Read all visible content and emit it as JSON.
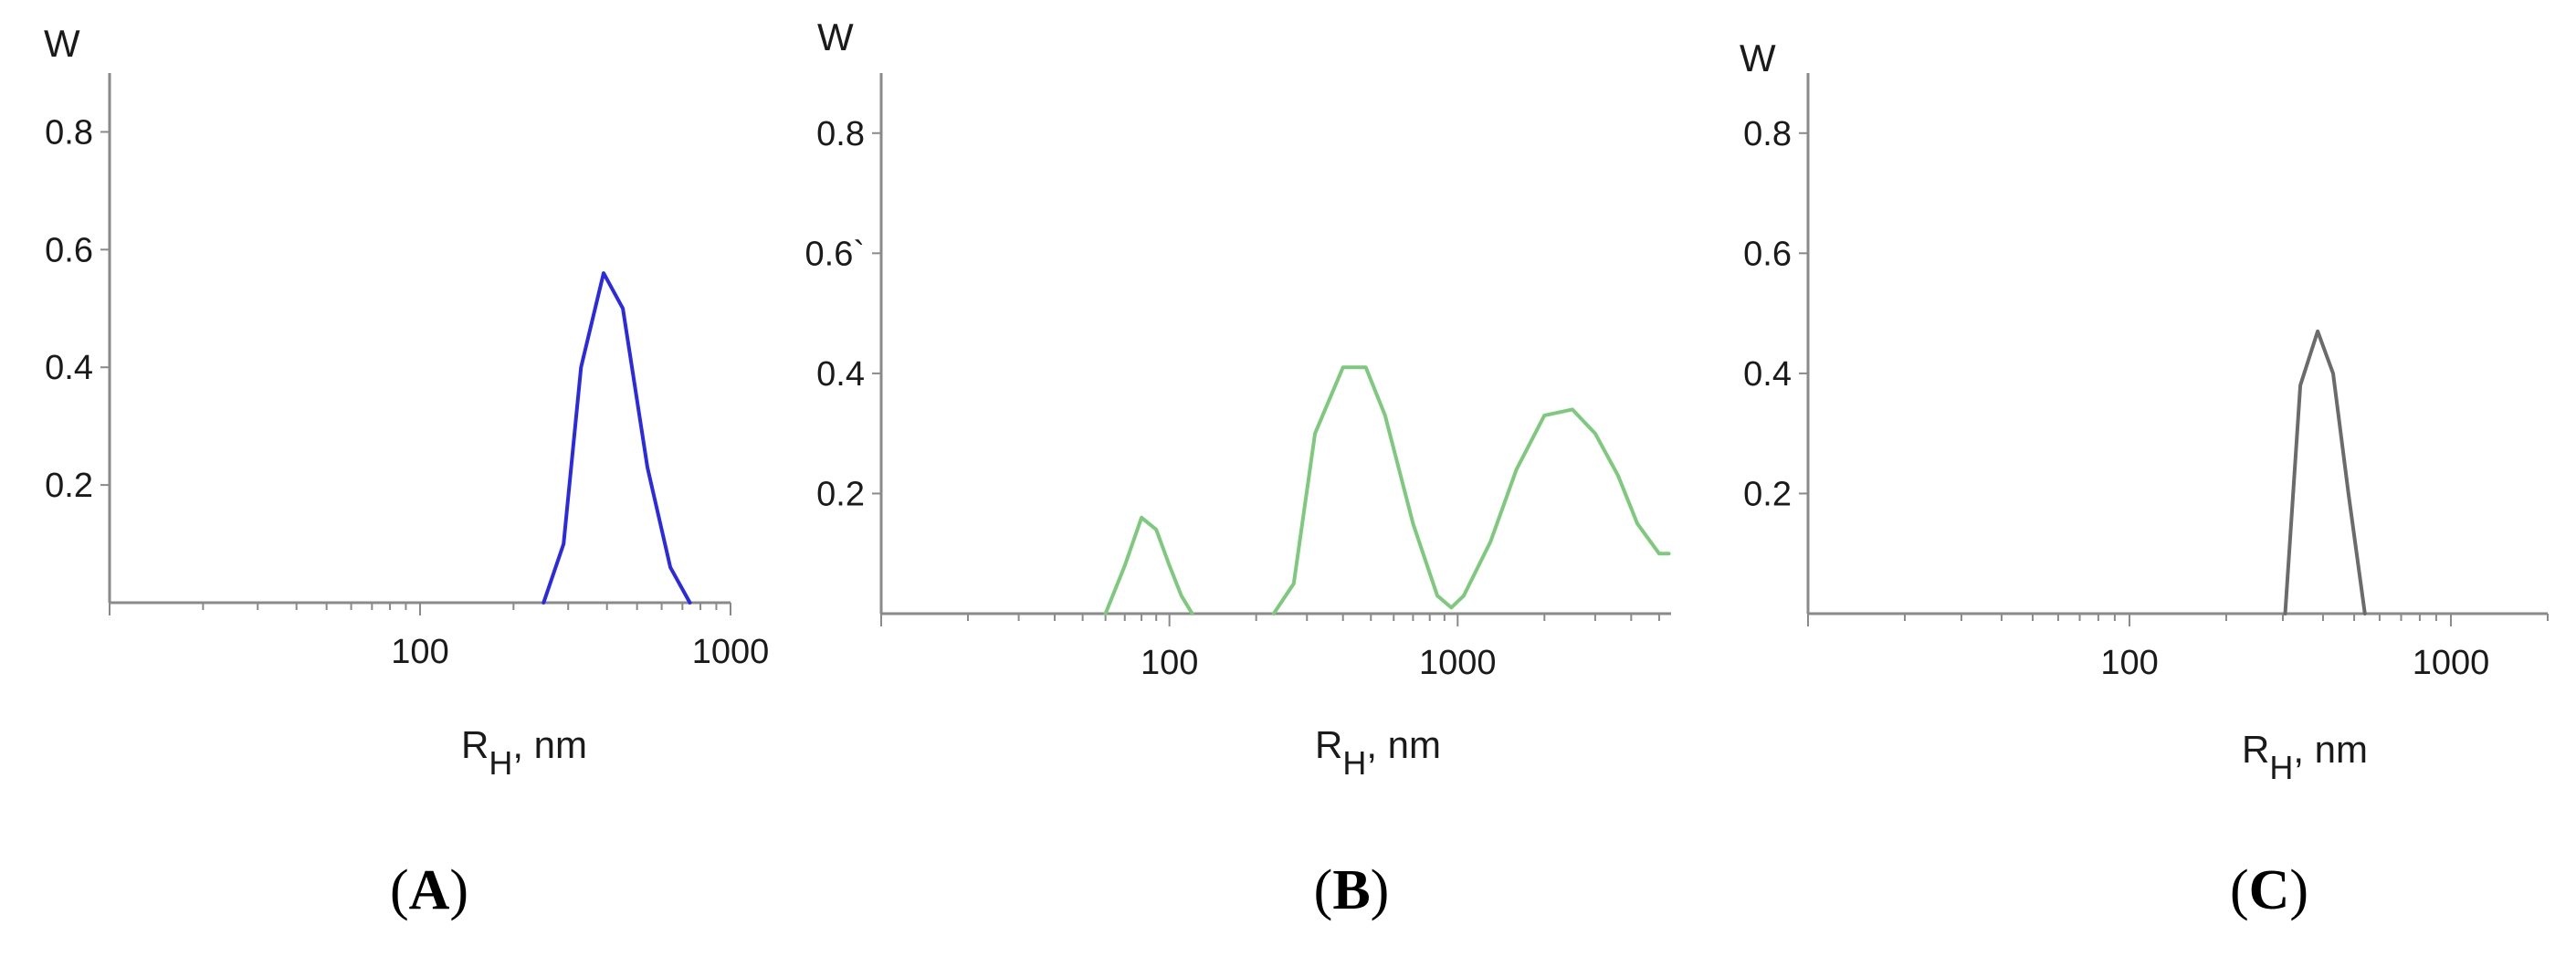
{
  "chart_data": [
    {
      "type": "line",
      "panel_label": "A",
      "ylabel": "W",
      "xlabel_main": "R",
      "xlabel_sub": "H",
      "xlabel_tail": ", nm",
      "x_scale": "log",
      "xlim": [
        10,
        1000
      ],
      "ylim": [
        0,
        0.9
      ],
      "y_ticks": [
        0.2,
        0.4,
        0.6,
        0.8
      ],
      "y_tick_labels": [
        "0.2",
        "0.4",
        "0.6",
        "0.8"
      ],
      "x_ticks": [
        100,
        1000
      ],
      "x_tick_labels": [
        "100",
        "1000"
      ],
      "grid": false,
      "series": [
        {
          "color": "#2a2ae6",
          "x": [
            250,
            290,
            330,
            390,
            450,
            540,
            640,
            740
          ],
          "y": [
            0.0,
            0.1,
            0.4,
            0.56,
            0.5,
            0.23,
            0.06,
            0.0
          ]
        }
      ]
    },
    {
      "type": "line",
      "panel_label": "B",
      "ylabel": "W",
      "xlabel_main": "R",
      "xlabel_sub": "H",
      "xlabel_tail": ", nm",
      "x_scale": "log",
      "xlim": [
        10,
        5500
      ],
      "ylim": [
        0,
        0.9
      ],
      "y_ticks": [
        0.2,
        0.4,
        0.6,
        0.8
      ],
      "y_tick_labels": [
        "0.2",
        "0.4",
        "0.6`",
        "0.8"
      ],
      "x_ticks": [
        100,
        1000
      ],
      "x_tick_labels": [
        "100",
        "1000"
      ],
      "grid": false,
      "series": [
        {
          "color": "#7dca7d",
          "x": [
            60,
            70,
            80,
            90,
            100,
            110,
            120
          ],
          "y": [
            0.0,
            0.08,
            0.16,
            0.14,
            0.08,
            0.03,
            0.0
          ]
        },
        {
          "color": "#7dca7d",
          "x": [
            230,
            270,
            320,
            400,
            480,
            560,
            700,
            850,
            950,
            1050
          ],
          "y": [
            0.0,
            0.05,
            0.3,
            0.41,
            0.41,
            0.33,
            0.15,
            0.03,
            0.01,
            0.03
          ]
        },
        {
          "color": "#7dca7d",
          "x": [
            1050,
            1300,
            1600,
            2000,
            2500,
            3000,
            3600,
            4200,
            5000,
            5400
          ],
          "y": [
            0.03,
            0.12,
            0.24,
            0.33,
            0.34,
            0.3,
            0.23,
            0.15,
            0.1,
            0.1
          ]
        }
      ]
    },
    {
      "type": "line",
      "panel_label": "C",
      "ylabel": "W",
      "xlabel_main": "R",
      "xlabel_sub": "H",
      "xlabel_tail": ", nm",
      "x_scale": "log",
      "xlim": [
        10,
        2000
      ],
      "ylim": [
        0,
        0.9
      ],
      "y_ticks": [
        0.2,
        0.4,
        0.6,
        0.8
      ],
      "y_tick_labels": [
        "0.2",
        "0.4",
        "0.6",
        "0.8"
      ],
      "x_ticks": [
        100,
        1000
      ],
      "x_tick_labels": [
        "100",
        "1000"
      ],
      "grid": false,
      "series": [
        {
          "color": "#6b6b6b",
          "x": [
            305,
            340,
            385,
            430,
            480,
            540
          ],
          "y": [
            0.0,
            0.38,
            0.47,
            0.4,
            0.2,
            0.0
          ]
        }
      ]
    }
  ]
}
